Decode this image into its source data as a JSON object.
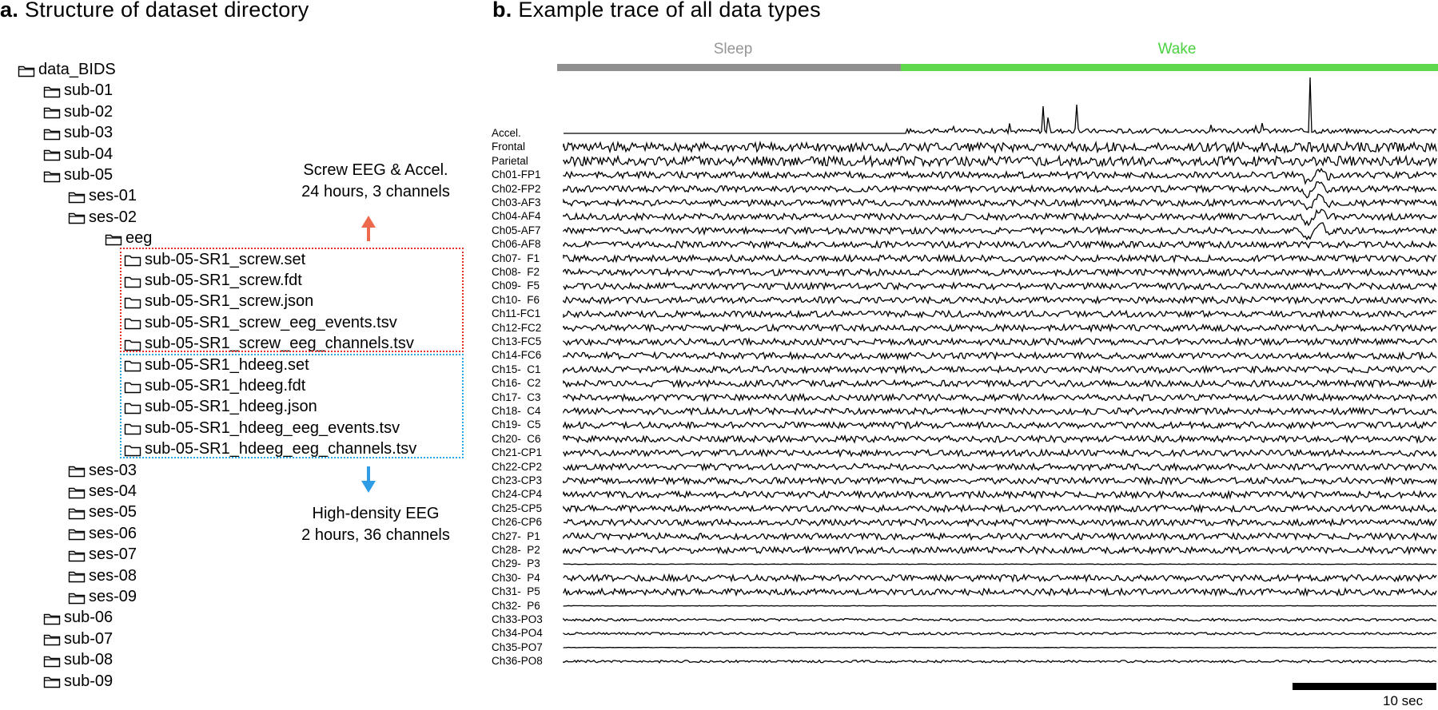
{
  "panel_a": {
    "letter": "a.",
    "title": "Structure of dataset directory",
    "tree": [
      {
        "label": "data_BIDS",
        "type": "folder",
        "depth": 0
      },
      {
        "label": "sub-01",
        "type": "folder",
        "depth": 1
      },
      {
        "label": "sub-02",
        "type": "folder",
        "depth": 1
      },
      {
        "label": "sub-03",
        "type": "folder",
        "depth": 1
      },
      {
        "label": "sub-04",
        "type": "folder",
        "depth": 1
      },
      {
        "label": "sub-05",
        "type": "folder",
        "depth": 1
      },
      {
        "label": "ses-01",
        "type": "folder",
        "depth": 2
      },
      {
        "label": "ses-02",
        "type": "folder",
        "depth": 2
      },
      {
        "label": "eeg",
        "type": "folder",
        "depth": 3
      },
      {
        "label": "sub-05-SR1_screw.set",
        "type": "file",
        "depth": 4
      },
      {
        "label": "sub-05-SR1_screw.fdt",
        "type": "file",
        "depth": 4
      },
      {
        "label": "sub-05-SR1_screw.json",
        "type": "file",
        "depth": 4
      },
      {
        "label": "sub-05-SR1_screw_eeg_events.tsv",
        "type": "file",
        "depth": 4
      },
      {
        "label": "sub-05-SR1_screw_eeg_channels.tsv",
        "type": "file",
        "depth": 4
      },
      {
        "label": "sub-05-SR1_hdeeg.set",
        "type": "file",
        "depth": 4
      },
      {
        "label": "sub-05-SR1_hdeeg.fdt",
        "type": "file",
        "depth": 4
      },
      {
        "label": "sub-05-SR1_hdeeg.json",
        "type": "file",
        "depth": 4
      },
      {
        "label": "sub-05-SR1_hdeeg_eeg_events.tsv",
        "type": "file",
        "depth": 4
      },
      {
        "label": "sub-05-SR1_hdeeg_eeg_channels.tsv",
        "type": "file",
        "depth": 4
      },
      {
        "label": "ses-03",
        "type": "folder",
        "depth": 2
      },
      {
        "label": "ses-04",
        "type": "folder",
        "depth": 2
      },
      {
        "label": "ses-05",
        "type": "folder",
        "depth": 2
      },
      {
        "label": "ses-06",
        "type": "folder",
        "depth": 2
      },
      {
        "label": "ses-07",
        "type": "folder",
        "depth": 2
      },
      {
        "label": "ses-08",
        "type": "folder",
        "depth": 2
      },
      {
        "label": "ses-09",
        "type": "folder",
        "depth": 2
      },
      {
        "label": "sub-06",
        "type": "folder",
        "depth": 1
      },
      {
        "label": "sub-07",
        "type": "folder",
        "depth": 1
      },
      {
        "label": "sub-08",
        "type": "folder",
        "depth": 1
      },
      {
        "label": "sub-09",
        "type": "folder",
        "depth": 1
      }
    ],
    "screw_note": {
      "line1": "Screw EEG & Accel.",
      "line2": "24 hours, 3 channels",
      "color": "#ee6a4f"
    },
    "hd_note": {
      "line1": "High-density EEG",
      "line2": "2 hours, 36 channels",
      "color": "#2f9de6"
    }
  },
  "panel_b": {
    "letter": "b.",
    "title": "Example trace of all data types",
    "states": [
      {
        "label": "Sleep",
        "color": "#969696"
      },
      {
        "label": "Wake",
        "color": "#4ad23f"
      }
    ],
    "channels": [
      "Accel.",
      "Frontal",
      "Parietal",
      "Ch01-FP1",
      "Ch02-FP2",
      "Ch03-AF3",
      "Ch04-AF4",
      "Ch05-AF7",
      "Ch06-AF8",
      "Ch07-  F1",
      "Ch08-  F2",
      "Ch09-  F5",
      "Ch10-  F6",
      "Ch11-FC1",
      "Ch12-FC2",
      "Ch13-FC5",
      "Ch14-FC6",
      "Ch15-  C1",
      "Ch16-  C2",
      "Ch17-  C3",
      "Ch18-  C4",
      "Ch19-  C5",
      "Ch20-  C6",
      "Ch21-CP1",
      "Ch22-CP2",
      "Ch23-CP3",
      "Ch24-CP4",
      "Ch25-CP5",
      "Ch26-CP6",
      "Ch27-  P1",
      "Ch28-  P2",
      "Ch29-  P3",
      "Ch30-  P4",
      "Ch31-  P5",
      "Ch32-  P6",
      "Ch33-PO3",
      "Ch34-PO4",
      "Ch35-PO7",
      "Ch36-PO8"
    ],
    "scale_label": "10 sec"
  }
}
